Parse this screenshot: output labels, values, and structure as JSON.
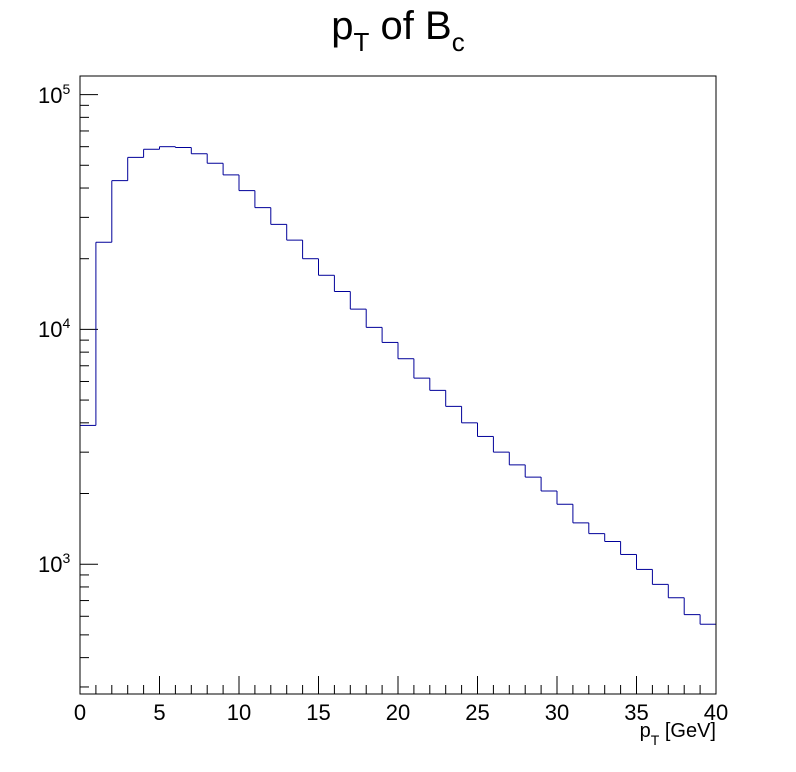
{
  "chart_data": {
    "type": "histogram",
    "title": {
      "base": "p",
      "base_sub": "T",
      "mid": " of B",
      "mid_sub": "c"
    },
    "xlabel": {
      "base": "p",
      "sub": "T",
      "rest": " [GeV]"
    },
    "ylabel": "",
    "xlim": [
      0,
      40
    ],
    "ylim": [
      280,
      120000
    ],
    "yscale": "log",
    "grid": false,
    "legend": "none",
    "line_color": "#000099",
    "x_ticks": [
      "0",
      "5",
      "10",
      "15",
      "20",
      "25",
      "30",
      "35",
      "40"
    ],
    "y_ticks": [
      {
        "base": "10",
        "exp": "3",
        "value": 1000
      },
      {
        "base": "10",
        "exp": "4",
        "value": 10000
      },
      {
        "base": "10",
        "exp": "5",
        "value": 100000
      }
    ],
    "bin_edges": [
      0,
      1,
      2,
      3,
      4,
      5,
      6,
      7,
      8,
      9,
      10,
      11,
      12,
      13,
      14,
      15,
      16,
      17,
      18,
      19,
      20,
      21,
      22,
      23,
      24,
      25,
      26,
      27,
      28,
      29,
      30,
      31,
      32,
      33,
      34,
      35,
      36,
      37,
      38,
      39,
      40
    ],
    "counts": [
      3900,
      23500,
      43000,
      54000,
      58500,
      60000,
      59500,
      56000,
      51000,
      45500,
      39000,
      33000,
      28000,
      24000,
      20000,
      17000,
      14500,
      12200,
      10200,
      8800,
      7500,
      6200,
      5500,
      4700,
      4000,
      3500,
      3000,
      2650,
      2350,
      2050,
      1800,
      1500,
      1350,
      1250,
      1100,
      950,
      820,
      720,
      610,
      555
    ]
  }
}
